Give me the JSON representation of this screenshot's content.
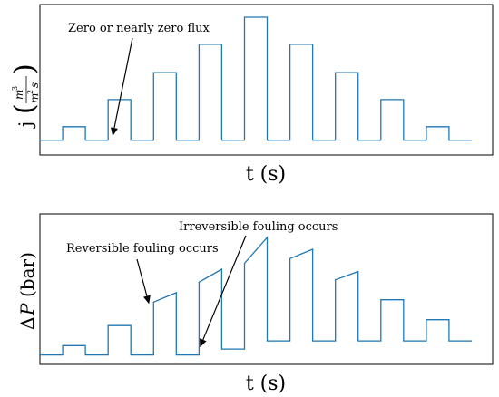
{
  "chart_data": [
    {
      "type": "line",
      "style": "stepped pulses, no tick marks",
      "xlabel": "t (s)",
      "ylabel": {
        "prefix": "j",
        "num_sym": "m",
        "num_exp": "3",
        "den_sym": "m",
        "den_exp": "2",
        "den_tail": "s"
      },
      "grid": false,
      "color": "#1f77b4",
      "baseline": 0,
      "ylim": [
        -0.12,
        1.0
      ],
      "pulses": [
        {
          "start": 0.0,
          "end": 0.5,
          "value": 0
        },
        {
          "start": 0.5,
          "end": 1.0,
          "value": 0.11
        },
        {
          "start": 1.0,
          "end": 1.5,
          "value": 0
        },
        {
          "start": 1.5,
          "end": 2.0,
          "value": 0.33
        },
        {
          "start": 2.0,
          "end": 2.5,
          "value": 0
        },
        {
          "start": 2.5,
          "end": 3.0,
          "value": 0.55
        },
        {
          "start": 3.0,
          "end": 3.5,
          "value": 0
        },
        {
          "start": 3.5,
          "end": 4.0,
          "value": 0.78
        },
        {
          "start": 4.0,
          "end": 4.5,
          "value": 0
        },
        {
          "start": 4.5,
          "end": 5.0,
          "value": 1.0
        },
        {
          "start": 5.0,
          "end": 5.5,
          "value": 0
        },
        {
          "start": 5.5,
          "end": 6.0,
          "value": 0.78
        },
        {
          "start": 6.0,
          "end": 6.5,
          "value": 0
        },
        {
          "start": 6.5,
          "end": 7.0,
          "value": 0.55
        },
        {
          "start": 7.0,
          "end": 7.5,
          "value": 0
        },
        {
          "start": 7.5,
          "end": 8.0,
          "value": 0.33
        },
        {
          "start": 8.0,
          "end": 8.5,
          "value": 0
        },
        {
          "start": 8.5,
          "end": 9.0,
          "value": 0.11
        },
        {
          "start": 9.0,
          "end": 9.5,
          "value": 0
        }
      ],
      "annotations": [
        {
          "text": "Zero or nearly zero flux",
          "target": {
            "x": 1.6,
            "y": 0.02
          }
        }
      ]
    },
    {
      "type": "line",
      "style": "stepped pulses with linear rise, no tick marks",
      "xlabel": "t (s)",
      "ylabel": {
        "prefix": "Δ",
        "symbol": "P",
        "unit": "(bar)"
      },
      "grid": false,
      "color": "#1f77b4",
      "ylim": [
        -0.08,
        1.0
      ],
      "segments": [
        {
          "start": 0.0,
          "end": 0.5,
          "from": 0.0,
          "to": 0.0
        },
        {
          "start": 0.5,
          "end": 1.0,
          "from": 0.08,
          "to": 0.08
        },
        {
          "start": 1.0,
          "end": 1.5,
          "from": 0.0,
          "to": 0.0
        },
        {
          "start": 1.5,
          "end": 2.0,
          "from": 0.25,
          "to": 0.25
        },
        {
          "start": 2.0,
          "end": 2.5,
          "from": 0.0,
          "to": 0.0
        },
        {
          "start": 2.5,
          "end": 3.0,
          "from": 0.45,
          "to": 0.53
        },
        {
          "start": 3.0,
          "end": 3.5,
          "from": 0.0,
          "to": 0.0
        },
        {
          "start": 3.5,
          "end": 4.0,
          "from": 0.62,
          "to": 0.73
        },
        {
          "start": 4.0,
          "end": 4.5,
          "from": 0.05,
          "to": 0.05
        },
        {
          "start": 4.5,
          "end": 5.0,
          "from": 0.78,
          "to": 1.0
        },
        {
          "start": 5.0,
          "end": 5.5,
          "from": 0.12,
          "to": 0.12
        },
        {
          "start": 5.5,
          "end": 6.0,
          "from": 0.82,
          "to": 0.9
        },
        {
          "start": 6.0,
          "end": 6.5,
          "from": 0.12,
          "to": 0.12
        },
        {
          "start": 6.5,
          "end": 7.0,
          "from": 0.64,
          "to": 0.71
        },
        {
          "start": 7.0,
          "end": 7.5,
          "from": 0.12,
          "to": 0.12
        },
        {
          "start": 7.5,
          "end": 8.0,
          "from": 0.47,
          "to": 0.47
        },
        {
          "start": 8.0,
          "end": 8.5,
          "from": 0.12,
          "to": 0.12
        },
        {
          "start": 8.5,
          "end": 9.0,
          "from": 0.3,
          "to": 0.3
        },
        {
          "start": 9.0,
          "end": 9.5,
          "from": 0.12,
          "to": 0.12
        }
      ],
      "annotations": [
        {
          "text": "Reversible fouling occurs",
          "target": {
            "x": 2.4,
            "y": 0.45
          }
        },
        {
          "text": "Irreversible fouling occurs",
          "target": {
            "x": 3.5,
            "y": 0.05
          }
        }
      ]
    }
  ]
}
